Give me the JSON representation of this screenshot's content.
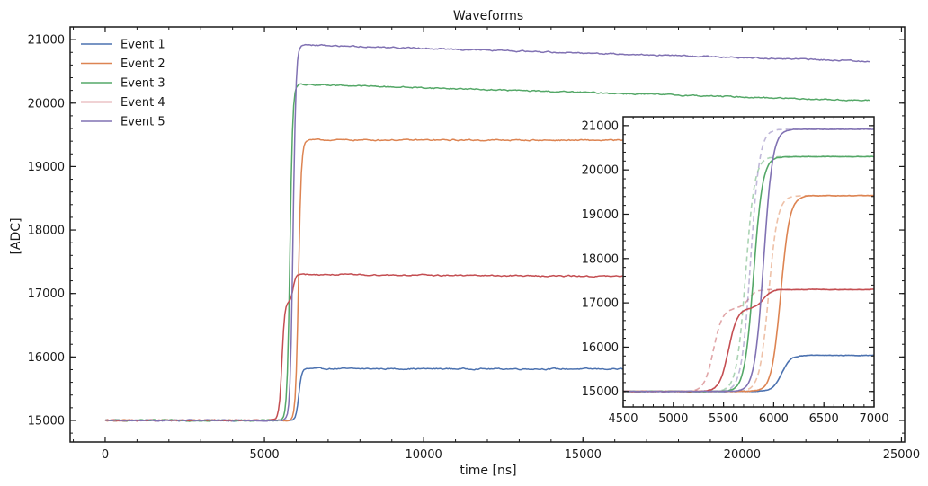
{
  "chart_data": [
    {
      "type": "line",
      "title": "Waveforms",
      "xlabel": "time [ns]",
      "ylabel": "[ADC]",
      "xlim": [
        -1100,
        25100
      ],
      "ylim": [
        14660,
        21200
      ],
      "xticks": [
        0,
        5000,
        10000,
        15000,
        20000,
        25000
      ],
      "yticks": [
        15000,
        16000,
        17000,
        18000,
        19000,
        20000,
        21000
      ],
      "legend_position": "top-left",
      "series": [
        {
          "name": "Event 1",
          "color": "#4c72b0",
          "baseline": 15000,
          "final": 15815,
          "x_mid": 6080,
          "x_end": 24000
        },
        {
          "name": "Event 2",
          "color": "#dd8452",
          "baseline": 15000,
          "final": 19420,
          "x_mid": 6070,
          "x_end": 24000
        },
        {
          "name": "Event 3",
          "color": "#55a868",
          "baseline": 15000,
          "final": 20300,
          "x_mid": 5800,
          "x_end": 24000
        },
        {
          "name": "Event 4",
          "color": "#c44e52",
          "baseline": 15000,
          "final": 17300,
          "x_mid": 5850,
          "x_end": 24000
        },
        {
          "name": "Event 5",
          "color": "#8172b3",
          "baseline": 15000,
          "final": 20920,
          "x_mid": 5900,
          "x_end": 24000
        }
      ]
    },
    {
      "type": "line",
      "title": "",
      "xlim": [
        4500,
        7000
      ],
      "ylim": [
        14650,
        21200
      ],
      "xticks": [
        4500,
        5000,
        5500,
        6000,
        6500,
        7000
      ],
      "yticks": [
        15000,
        16000,
        17000,
        18000,
        19000,
        20000,
        21000
      ],
      "dashed_overlay": "shifted copies of Event 2, 3, 4, 5",
      "series_ref": [
        "Event 1",
        "Event 2",
        "Event 3",
        "Event 4",
        "Event 5"
      ]
    }
  ]
}
